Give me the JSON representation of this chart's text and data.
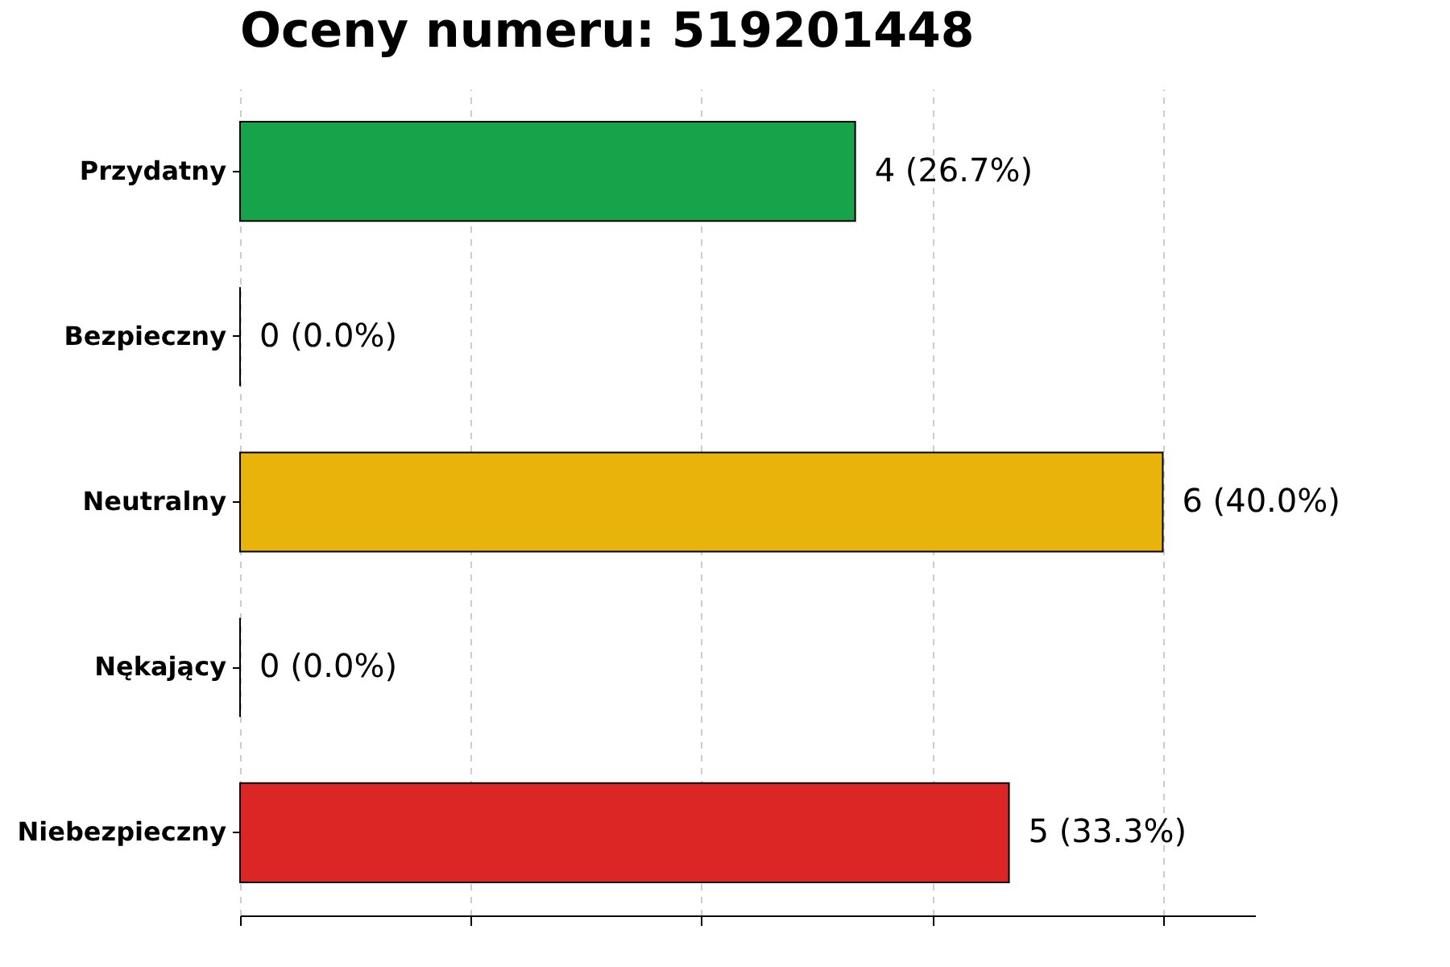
{
  "chart_data": {
    "type": "bar",
    "orientation": "horizontal",
    "title": "Oceny numeru: 519201448",
    "categories": [
      "Przydatny",
      "Bezpieczny",
      "Neutralny",
      "Nękający",
      "Niebezpieczny"
    ],
    "values": [
      4,
      0,
      6,
      0,
      5
    ],
    "colors": [
      "#17a34a",
      "#000000",
      "#e8b30a",
      "#000000",
      "#dc2626"
    ],
    "value_labels": [
      "4 (26.7%)",
      "0 (0.0%)",
      "6 (40.0%)",
      "0 (0.0%)",
      "5 (33.3%)"
    ],
    "xlim": [
      0,
      6.6
    ],
    "xticks": [
      {
        "value": 0,
        "label": null
      },
      {
        "value": 1.5,
        "label": null
      },
      {
        "value": 3,
        "label": null
      },
      {
        "value": 4.5,
        "label": null
      },
      {
        "value": 6,
        "label": null
      }
    ],
    "grid": "x",
    "tick_labels": "y"
  }
}
